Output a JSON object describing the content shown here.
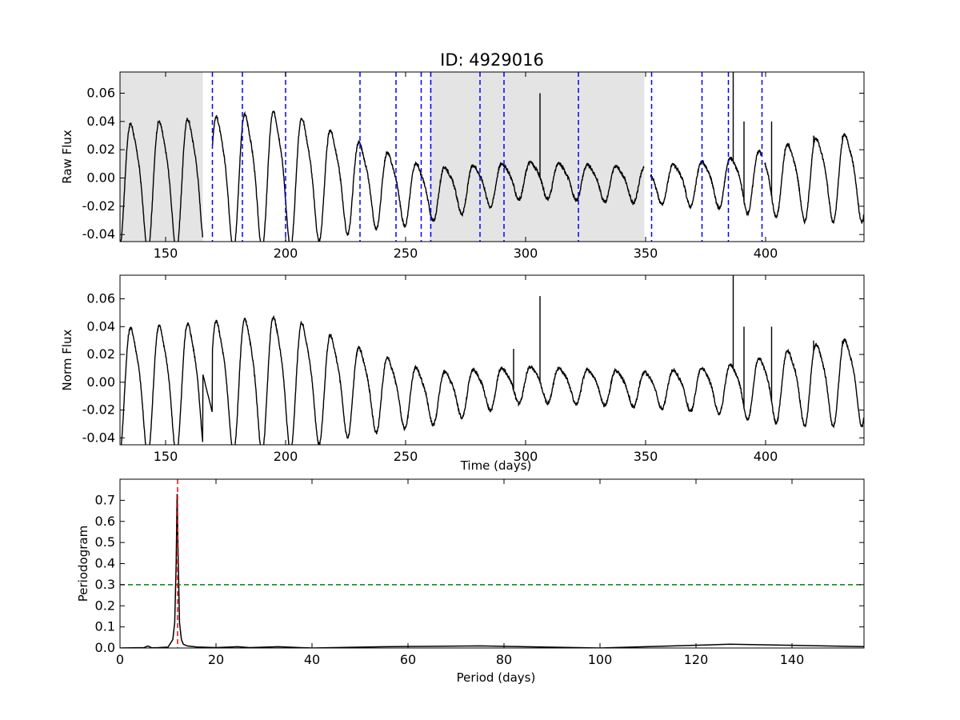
{
  "title": "ID: 4929016",
  "chart_data": [
    {
      "type": "line",
      "ylabel": "Raw Flux",
      "xlabel": "",
      "xlim": [
        131,
        441
      ],
      "ylim": [
        -0.045,
        0.075
      ],
      "xticks": [
        "150",
        "200",
        "250",
        "300",
        "350",
        "400"
      ],
      "yticks": [
        "-0.04",
        "-0.02",
        "0.00",
        "0.02",
        "0.04",
        "0.06"
      ],
      "grey_bands": [
        [
          131,
          165.5
        ],
        [
          260,
          349.5
        ]
      ],
      "vertical_dashed_lines": [
        169.5,
        182,
        200,
        231,
        246,
        256.5,
        260.5,
        281,
        291,
        322,
        352.5,
        373.5,
        384.5,
        398.5
      ],
      "gaps": [
        [
          165.5,
          169.5
        ],
        [
          349.5,
          352
        ],
        [
          398.5,
          399.5
        ]
      ],
      "spikes": [
        [
          306,
          0.06
        ],
        [
          386.5,
          0.075
        ],
        [
          391,
          0.04
        ],
        [
          402.5,
          0.04
        ],
        [
          420,
          0.03
        ],
        [
          432,
          0.03
        ]
      ],
      "wave": {
        "period_days": 11.9,
        "start": 131,
        "amp_points": [
          [
            131,
            0.042
          ],
          [
            200,
            0.046
          ],
          [
            230,
            0.03
          ],
          [
            260,
            0.018
          ],
          [
            300,
            0.012
          ],
          [
            350,
            0.012
          ],
          [
            380,
            0.016
          ],
          [
            420,
            0.028
          ],
          [
            441,
            0.03
          ]
        ],
        "mean_points": [
          [
            131,
            -0.002
          ],
          [
            200,
            0.004
          ],
          [
            260,
            -0.01
          ],
          [
            300,
            0.0
          ],
          [
            350,
            -0.004
          ],
          [
            390,
            -0.002
          ],
          [
            441,
            0.004
          ]
        ]
      }
    },
    {
      "type": "line",
      "ylabel": "Norm Flux",
      "xlabel": "Time (days)",
      "xlim": [
        131,
        441
      ],
      "ylim": [
        -0.045,
        0.077
      ],
      "xticks": [
        "150",
        "200",
        "250",
        "300",
        "350",
        "400"
      ],
      "yticks": [
        "-0.04",
        "-0.02",
        "0.00",
        "0.02",
        "0.04",
        "0.06"
      ],
      "linear_fill": [
        [
          165.5,
          0.006
        ],
        [
          169.5,
          -0.022
        ]
      ],
      "spikes": [
        [
          295,
          0.024
        ],
        [
          306,
          0.062
        ],
        [
          386.5,
          0.077
        ],
        [
          391,
          0.04
        ],
        [
          402.5,
          0.04
        ],
        [
          420,
          0.03
        ],
        [
          432,
          0.03
        ]
      ],
      "wave": {
        "period_days": 11.9,
        "start": 131,
        "amp_points": [
          [
            131,
            0.043
          ],
          [
            200,
            0.046
          ],
          [
            230,
            0.03
          ],
          [
            260,
            0.018
          ],
          [
            300,
            0.012
          ],
          [
            350,
            0.012
          ],
          [
            380,
            0.016
          ],
          [
            420,
            0.028
          ],
          [
            441,
            0.03
          ]
        ],
        "mean_points": [
          [
            131,
            -0.002
          ],
          [
            200,
            0.004
          ],
          [
            260,
            -0.01
          ],
          [
            300,
            0.0
          ],
          [
            350,
            -0.004
          ],
          [
            390,
            -0.004
          ],
          [
            441,
            0.004
          ]
        ]
      }
    },
    {
      "type": "line",
      "ylabel": "Periodogram",
      "xlabel": "Period (days)",
      "xlim": [
        0,
        155
      ],
      "ylim": [
        0,
        0.8
      ],
      "xticks": [
        "0",
        "20",
        "40",
        "60",
        "80",
        "100",
        "120",
        "140"
      ],
      "yticks": [
        "0.0",
        "0.1",
        "0.2",
        "0.3",
        "0.4",
        "0.5",
        "0.6",
        "0.7"
      ],
      "x": [
        0,
        5,
        5.8,
        6.6,
        8,
        10,
        11,
        11.4,
        11.7,
        11.9,
        12.1,
        12.4,
        12.8,
        13.2,
        14,
        16,
        20,
        24.5,
        27,
        33,
        40,
        55,
        75,
        100,
        127,
        155
      ],
      "y": [
        0.0,
        0.002,
        0.01,
        0.001,
        0.002,
        0.004,
        0.04,
        0.12,
        0.4,
        0.73,
        0.45,
        0.12,
        0.04,
        0.018,
        0.01,
        0.005,
        0.002,
        0.006,
        0.002,
        0.006,
        0.0,
        0.006,
        0.01,
        0.0,
        0.018,
        0.007
      ],
      "threshold": 0.3,
      "peak_period": 12
    }
  ],
  "colors": {
    "line": "#000000",
    "grey_band": "#e4e4e4",
    "blue_dashed": "#0000ff",
    "green_dashed": "#008000",
    "red_dashed": "#ff0000"
  }
}
